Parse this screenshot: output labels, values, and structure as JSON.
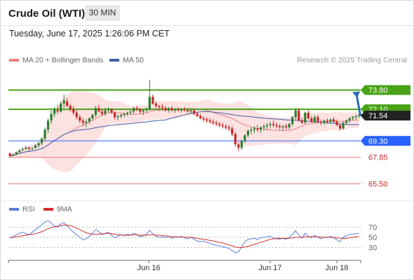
{
  "header": {
    "title": "Crude Oil (WTI)",
    "interval": "30 MIN",
    "timestamp": "Tuesday, June 17, 2025 1:26:06 PM CET"
  },
  "legend": {
    "ma20_bb": "MA 20 + Bollinger Bands",
    "ma50": "MA 50",
    "credit": "Research © 2025 Trading Central",
    "rsi": "RSI",
    "ma9": "9MA"
  },
  "colors": {
    "bull": "#2e7d32",
    "bear": "#c62828",
    "bb_fill": "#fde2e2",
    "ma20": "#f08080",
    "ma50": "#3f5fa8",
    "resistance": "#4aa317",
    "support": "#2962ff",
    "level_red": "#e57373",
    "current": "#222222",
    "arrow": "#2b6cb0",
    "rsi": "#5b7fd6",
    "ma9": "#d32f2f"
  },
  "chart_data": [
    {
      "type": "candlestick",
      "x_ticks": [
        "Jun 16",
        "Jun 17",
        "Jun 18"
      ],
      "ylim": [
        64.3,
        75.7
      ],
      "levels": [
        {
          "label": "73.80",
          "value": 73.8,
          "kind": "resistance"
        },
        {
          "label": "72.10",
          "value": 72.1,
          "kind": "resistance"
        },
        {
          "label": "71.54",
          "value": 71.54,
          "kind": "current"
        },
        {
          "label": "69.30",
          "value": 69.3,
          "kind": "support"
        },
        {
          "label": "67.85",
          "value": 67.85,
          "kind": "minor"
        },
        {
          "label": "65.50",
          "value": 65.5,
          "kind": "minor"
        }
      ],
      "forecast": {
        "from": 71.5,
        "to": 73.8
      },
      "ohlc": [
        [
          68.2,
          68.25,
          67.9,
          67.95
        ],
        [
          68.0,
          68.2,
          67.95,
          68.1
        ],
        [
          68.15,
          68.35,
          68.05,
          68.3
        ],
        [
          68.3,
          68.55,
          68.2,
          68.45
        ],
        [
          68.5,
          68.7,
          68.4,
          68.55
        ],
        [
          68.6,
          68.85,
          68.5,
          68.7
        ],
        [
          68.7,
          68.8,
          68.4,
          68.6
        ],
        [
          68.6,
          68.75,
          68.5,
          68.65
        ],
        [
          68.7,
          69.0,
          68.6,
          68.9
        ],
        [
          68.9,
          69.2,
          68.7,
          69.1
        ],
        [
          69.1,
          69.6,
          68.9,
          69.5
        ],
        [
          69.5,
          70.5,
          69.3,
          70.3
        ],
        [
          70.3,
          71.3,
          70.0,
          71.1
        ],
        [
          71.1,
          72.0,
          70.8,
          71.7
        ],
        [
          71.7,
          72.3,
          71.4,
          72.1
        ],
        [
          72.0,
          72.5,
          71.7,
          71.9
        ],
        [
          71.9,
          72.8,
          71.8,
          72.6
        ],
        [
          72.6,
          73.4,
          72.2,
          72.9
        ],
        [
          72.8,
          73.1,
          72.3,
          72.4
        ],
        [
          72.4,
          72.6,
          71.9,
          72.1
        ],
        [
          72.1,
          72.4,
          71.6,
          71.8
        ],
        [
          71.8,
          72.0,
          71.2,
          71.4
        ],
        [
          71.4,
          71.6,
          70.9,
          71.1
        ],
        [
          71.1,
          71.3,
          70.6,
          70.9
        ],
        [
          70.9,
          71.2,
          70.5,
          71.0
        ],
        [
          71.0,
          71.4,
          70.8,
          71.3
        ],
        [
          71.3,
          71.7,
          71.1,
          71.6
        ],
        [
          71.6,
          72.4,
          71.4,
          72.2
        ],
        [
          72.2,
          72.5,
          71.8,
          71.9
        ],
        [
          71.9,
          72.1,
          71.5,
          71.7
        ],
        [
          71.7,
          72.2,
          71.5,
          72.0
        ],
        [
          72.0,
          72.3,
          71.8,
          72.1
        ],
        [
          72.1,
          72.2,
          71.7,
          71.8
        ],
        [
          71.8,
          71.9,
          71.2,
          71.4
        ],
        [
          71.4,
          71.6,
          71.1,
          71.5
        ],
        [
          71.5,
          71.7,
          71.3,
          71.6
        ],
        [
          71.6,
          71.8,
          71.4,
          71.7
        ],
        [
          71.7,
          71.9,
          71.5,
          71.8
        ],
        [
          71.8,
          72.0,
          71.6,
          71.9
        ],
        [
          71.9,
          72.3,
          71.7,
          72.2
        ],
        [
          72.2,
          72.4,
          71.9,
          72.1
        ],
        [
          72.1,
          72.2,
          71.7,
          71.9
        ],
        [
          71.9,
          72.1,
          71.6,
          72.0
        ],
        [
          72.0,
          72.3,
          71.8,
          72.1
        ],
        [
          72.1,
          74.7,
          72.0,
          73.2
        ],
        [
          73.2,
          73.4,
          72.5,
          72.6
        ],
        [
          72.6,
          72.8,
          72.2,
          72.4
        ],
        [
          72.4,
          72.5,
          72.0,
          72.3
        ],
        [
          72.3,
          72.6,
          72.1,
          72.2
        ],
        [
          72.2,
          72.4,
          71.9,
          72.0
        ],
        [
          72.0,
          72.3,
          71.8,
          72.2
        ],
        [
          72.2,
          72.4,
          71.9,
          72.0
        ],
        [
          72.0,
          72.2,
          71.8,
          72.1
        ],
        [
          72.1,
          72.3,
          71.9,
          72.0
        ],
        [
          72.0,
          72.2,
          71.8,
          72.1
        ],
        [
          72.1,
          72.3,
          71.9,
          72.0
        ],
        [
          72.0,
          72.2,
          71.8,
          71.9
        ],
        [
          71.9,
          72.1,
          71.7,
          72.0
        ],
        [
          72.0,
          72.1,
          71.6,
          71.7
        ],
        [
          71.7,
          71.9,
          71.4,
          71.5
        ],
        [
          71.5,
          71.7,
          71.2,
          71.3
        ],
        [
          71.3,
          71.5,
          71.0,
          71.2
        ],
        [
          71.2,
          71.4,
          70.9,
          71.1
        ],
        [
          71.1,
          71.3,
          70.8,
          71.0
        ],
        [
          71.0,
          71.2,
          70.7,
          70.9
        ],
        [
          70.9,
          71.1,
          70.6,
          70.8
        ],
        [
          70.8,
          71.0,
          70.5,
          70.7
        ],
        [
          70.7,
          70.9,
          70.4,
          70.6
        ],
        [
          70.6,
          70.8,
          70.3,
          70.5
        ],
        [
          70.5,
          70.7,
          70.2,
          70.4
        ],
        [
          70.4,
          70.6,
          69.7,
          69.9
        ],
        [
          69.9,
          70.1,
          68.8,
          69.0
        ],
        [
          69.0,
          69.2,
          68.4,
          68.7
        ],
        [
          68.7,
          69.4,
          68.5,
          69.3
        ],
        [
          69.3,
          69.9,
          69.1,
          69.8
        ],
        [
          69.8,
          70.3,
          69.6,
          70.2
        ],
        [
          70.2,
          70.5,
          69.9,
          70.3
        ],
        [
          70.3,
          70.6,
          70.0,
          70.4
        ],
        [
          70.4,
          70.7,
          70.1,
          70.3
        ],
        [
          70.3,
          70.6,
          70.0,
          70.5
        ],
        [
          70.5,
          70.8,
          70.2,
          70.6
        ],
        [
          70.6,
          70.9,
          70.3,
          70.7
        ],
        [
          70.7,
          71.0,
          70.4,
          70.8
        ],
        [
          70.8,
          71.1,
          70.5,
          70.7
        ],
        [
          70.7,
          70.9,
          70.4,
          70.6
        ],
        [
          70.6,
          70.8,
          70.3,
          70.5
        ],
        [
          70.5,
          70.7,
          70.2,
          70.6
        ],
        [
          70.6,
          70.8,
          70.3,
          70.5
        ],
        [
          70.5,
          70.9,
          70.3,
          70.8
        ],
        [
          70.8,
          71.5,
          70.6,
          71.4
        ],
        [
          71.4,
          72.2,
          71.2,
          72.0
        ],
        [
          72.0,
          72.2,
          71.0,
          71.1
        ],
        [
          71.1,
          71.3,
          70.8,
          70.9
        ],
        [
          70.9,
          71.9,
          70.8,
          71.8
        ],
        [
          71.8,
          72.0,
          71.2,
          71.3
        ],
        [
          71.3,
          71.5,
          70.9,
          71.0
        ],
        [
          71.0,
          71.6,
          70.9,
          71.4
        ],
        [
          71.4,
          71.6,
          70.9,
          71.0
        ],
        [
          71.0,
          71.2,
          70.7,
          70.9
        ],
        [
          70.9,
          71.2,
          70.7,
          71.1
        ],
        [
          71.1,
          71.3,
          70.8,
          71.0
        ],
        [
          71.0,
          71.3,
          70.8,
          71.2
        ],
        [
          71.2,
          71.4,
          70.9,
          71.0
        ],
        [
          71.0,
          71.2,
          70.6,
          70.7
        ],
        [
          70.7,
          70.8,
          70.2,
          70.4
        ],
        [
          70.4,
          71.0,
          70.3,
          70.9
        ],
        [
          70.9,
          71.2,
          70.7,
          71.1
        ],
        [
          71.1,
          71.4,
          70.9,
          71.3
        ],
        [
          71.3,
          71.5,
          71.1,
          71.4
        ],
        [
          71.4,
          71.6,
          71.2,
          71.5
        ],
        [
          71.5,
          71.7,
          71.3,
          71.6
        ]
      ]
    },
    {
      "type": "line",
      "x_ticks": [
        "Jun 16",
        "Jun 17",
        "Jun 18"
      ],
      "y_ticks": [
        70,
        50,
        30
      ],
      "ylim": [
        10,
        90
      ],
      "series": [
        {
          "name": "RSI",
          "values": [
            48,
            52,
            55,
            58,
            60,
            57,
            55,
            60,
            65,
            70,
            75,
            80,
            83,
            78,
            72,
            70,
            76,
            79,
            72,
            66,
            60,
            55,
            50,
            45,
            47,
            52,
            58,
            65,
            61,
            55,
            58,
            60,
            54,
            49,
            52,
            55,
            53,
            56,
            54,
            58,
            55,
            51,
            53,
            56,
            64,
            57,
            52,
            50,
            51,
            49,
            52,
            48,
            51,
            50,
            52,
            49,
            47,
            50,
            46,
            43,
            41,
            43,
            40,
            38,
            36,
            34,
            33,
            31,
            30,
            28,
            24,
            20,
            21,
            32,
            41,
            46,
            47,
            48,
            46,
            49,
            50,
            51,
            52,
            49,
            47,
            46,
            48,
            46,
            50,
            56,
            63,
            54,
            48,
            58,
            52,
            49,
            54,
            50,
            47,
            51,
            49,
            52,
            49,
            45,
            41,
            50,
            53,
            56,
            56,
            57,
            58
          ]
        },
        {
          "name": "9MA",
          "values": [
            50,
            50,
            51,
            52,
            53,
            54,
            55,
            56,
            57,
            59,
            61,
            64,
            67,
            69,
            71,
            72,
            73,
            74,
            74,
            73,
            71,
            68,
            65,
            62,
            59,
            57,
            56,
            56,
            56,
            57,
            57,
            58,
            57,
            56,
            55,
            55,
            54,
            54,
            54,
            55,
            55,
            54,
            54,
            54,
            55,
            55,
            54,
            54,
            53,
            53,
            52,
            51,
            51,
            51,
            50,
            50,
            50,
            50,
            49,
            48,
            47,
            46,
            45,
            44,
            43,
            41,
            40,
            39,
            37,
            35,
            33,
            31,
            30,
            30,
            31,
            32,
            34,
            36,
            38,
            40,
            42,
            44,
            46,
            47,
            48,
            48,
            48,
            48,
            48,
            49,
            50,
            50,
            50,
            51,
            51,
            51,
            51,
            51,
            50,
            50,
            50,
            50,
            50,
            49,
            48,
            48,
            48,
            49,
            50,
            51,
            52
          ]
        }
      ]
    }
  ]
}
